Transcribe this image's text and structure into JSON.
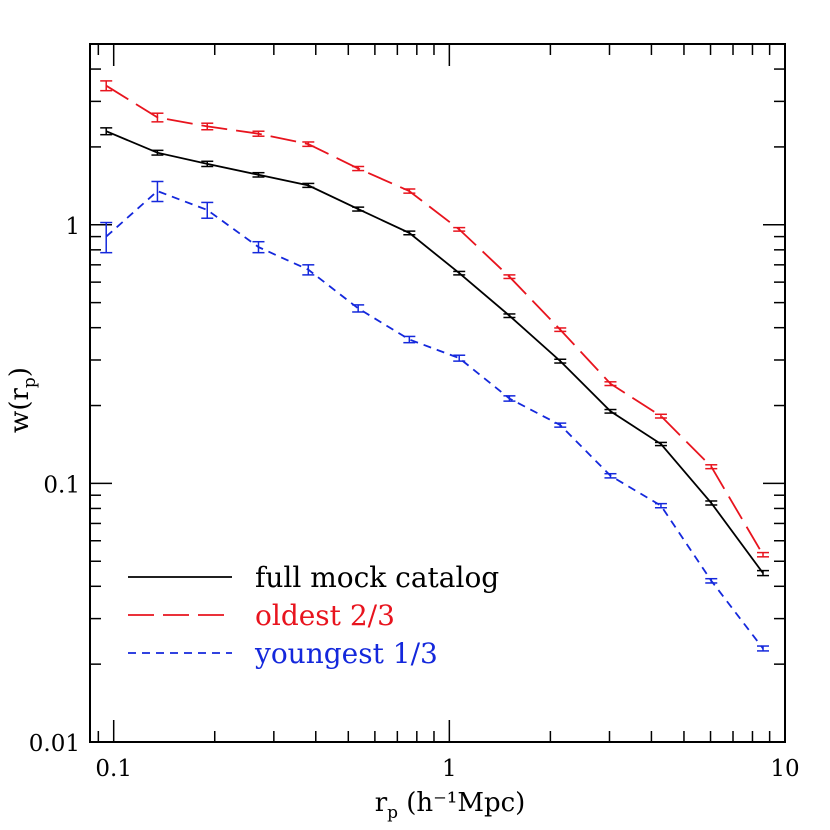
{
  "chart_data": {
    "type": "line",
    "title": "",
    "x_scale": "log",
    "y_scale": "log",
    "xlim": [
      0.085,
      10
    ],
    "ylim": [
      0.01,
      5
    ],
    "xlabel": {
      "main": "r",
      "sub": "p",
      "units": " (h⁻¹Mpc)"
    },
    "ylabel": {
      "main": "w(r",
      "sub": "p",
      "close": ")"
    },
    "x_ticks": [
      {
        "value": 0.1,
        "label": "0.1"
      },
      {
        "value": 1,
        "label": "1"
      },
      {
        "value": 10,
        "label": "10"
      }
    ],
    "y_ticks": [
      {
        "value": 0.01,
        "label": "0.01"
      },
      {
        "value": 0.1,
        "label": "0.1"
      },
      {
        "value": 1,
        "label": "1"
      }
    ],
    "x": [
      0.095,
      0.135,
      0.19,
      0.27,
      0.38,
      0.535,
      0.76,
      1.07,
      1.51,
      2.14,
      3.02,
      4.27,
      6.03,
      8.6
    ],
    "series": [
      {
        "name": "full mock catalog",
        "color": "#000000",
        "dash": "solid",
        "values": [
          2.3,
          1.9,
          1.72,
          1.56,
          1.42,
          1.15,
          0.93,
          0.65,
          0.445,
          0.297,
          0.19,
          0.142,
          0.084,
          0.045
        ],
        "errors": [
          0.07,
          0.04,
          0.04,
          0.03,
          0.025,
          0.02,
          0.015,
          0.01,
          0.007,
          0.005,
          0.003,
          0.002,
          0.0015,
          0.001
        ]
      },
      {
        "name": "oldest 2/3",
        "color": "#e8141e",
        "dash": "long",
        "values": [
          3.45,
          2.6,
          2.4,
          2.25,
          2.05,
          1.65,
          1.35,
          0.96,
          0.63,
          0.393,
          0.243,
          0.182,
          0.116,
          0.053
        ],
        "errors": [
          0.15,
          0.1,
          0.07,
          0.05,
          0.04,
          0.03,
          0.025,
          0.015,
          0.01,
          0.006,
          0.004,
          0.003,
          0.002,
          0.001
        ]
      },
      {
        "name": "youngest 1/3",
        "color": "#1428dc",
        "dash": "short",
        "values": [
          0.9,
          1.35,
          1.14,
          0.82,
          0.67,
          0.475,
          0.36,
          0.305,
          0.213,
          0.168,
          0.107,
          0.082,
          0.042,
          0.023
        ],
        "errors": [
          0.12,
          0.12,
          0.08,
          0.04,
          0.03,
          0.015,
          0.01,
          0.008,
          0.005,
          0.003,
          0.002,
          0.0015,
          0.0008,
          0.0005
        ]
      }
    ],
    "legend": {
      "placement": "lower-left"
    }
  }
}
